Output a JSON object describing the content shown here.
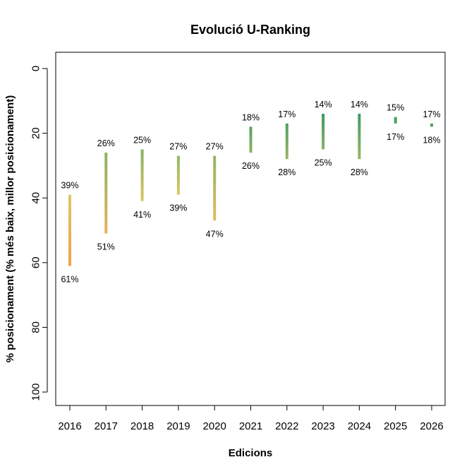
{
  "chart_data": {
    "type": "range-bar",
    "title": "Evolució U-Ranking",
    "xlabel": "Edicions",
    "ylabel": "% posicionament (% més baix, millor posicionament)",
    "y_reversed": true,
    "ylim": [
      0,
      100
    ],
    "y_ticks": [
      "0",
      "20",
      "40",
      "60",
      "80",
      "100"
    ],
    "categories": [
      "2016",
      "2017",
      "2018",
      "2019",
      "2020",
      "2021",
      "2022",
      "2023",
      "2024",
      "2025",
      "2026"
    ],
    "top_values": [
      39,
      26,
      25,
      27,
      27,
      18,
      17,
      14,
      14,
      15,
      17
    ],
    "bottom_values": [
      61,
      51,
      41,
      39,
      47,
      26,
      28,
      25,
      28,
      17,
      18
    ],
    "top_labels": [
      "39%",
      "26%",
      "25%",
      "27%",
      "27%",
      "18%",
      "17%",
      "14%",
      "14%",
      "15%",
      "17%"
    ],
    "bottom_labels": [
      "61%",
      "51%",
      "41%",
      "39%",
      "47%",
      "26%",
      "28%",
      "25%",
      "28%",
      "17%",
      "18%"
    ],
    "color_scale": {
      "best": "#3c9a5f",
      "mid": "#d8cb6a",
      "worst": "#f2a14a"
    }
  }
}
